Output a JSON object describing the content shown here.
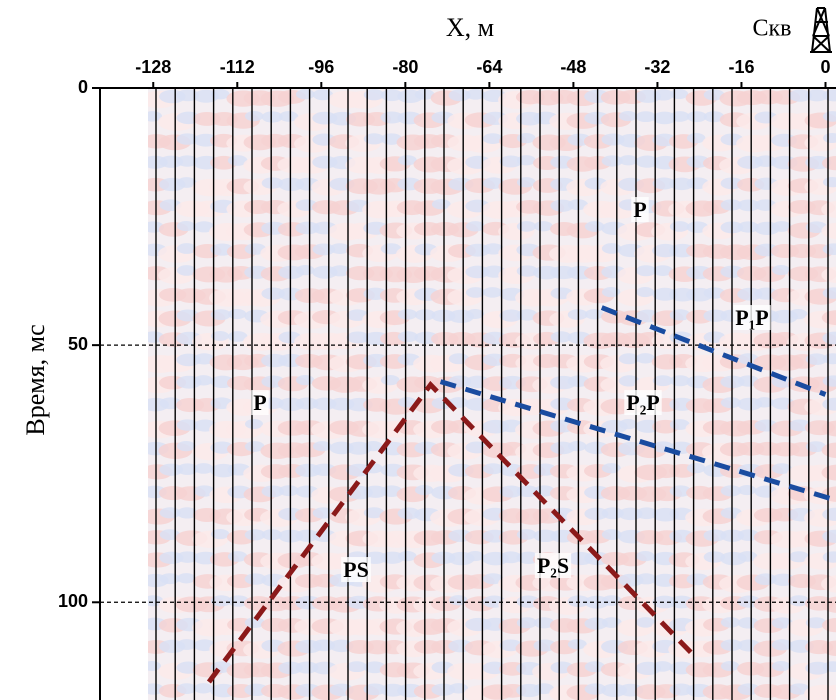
{
  "chart_data": {
    "type": "seismic",
    "xlabel": "X, м",
    "ylabel": "Время, мс",
    "well_label": "Скв",
    "xlim": [
      -129,
      2
    ],
    "ylim": [
      0,
      119
    ],
    "xticks": [
      -128,
      -112,
      -96,
      -80,
      -64,
      -48,
      -32,
      -16,
      0
    ],
    "yticks": [
      0,
      50,
      100
    ],
    "grid": true,
    "series": [
      {
        "color": "#8b1a1a",
        "x": [
          -117.4,
          -75.2,
          -25.3
        ],
        "values": [
          115.5,
          57.7,
          110.1
        ]
      },
      {
        "color": "#1a4ca0",
        "x": [
          -42.6,
          0
        ],
        "values": [
          42.7,
          59.6
        ]
      },
      {
        "color": "#1a4ca0",
        "x": [
          -73.3,
          1.5
        ],
        "values": [
          57.1,
          80
        ]
      }
    ],
    "annotations": [
      "P",
      "P₁P",
      "P",
      "P₂P",
      "PS",
      "P₂S"
    ]
  }
}
